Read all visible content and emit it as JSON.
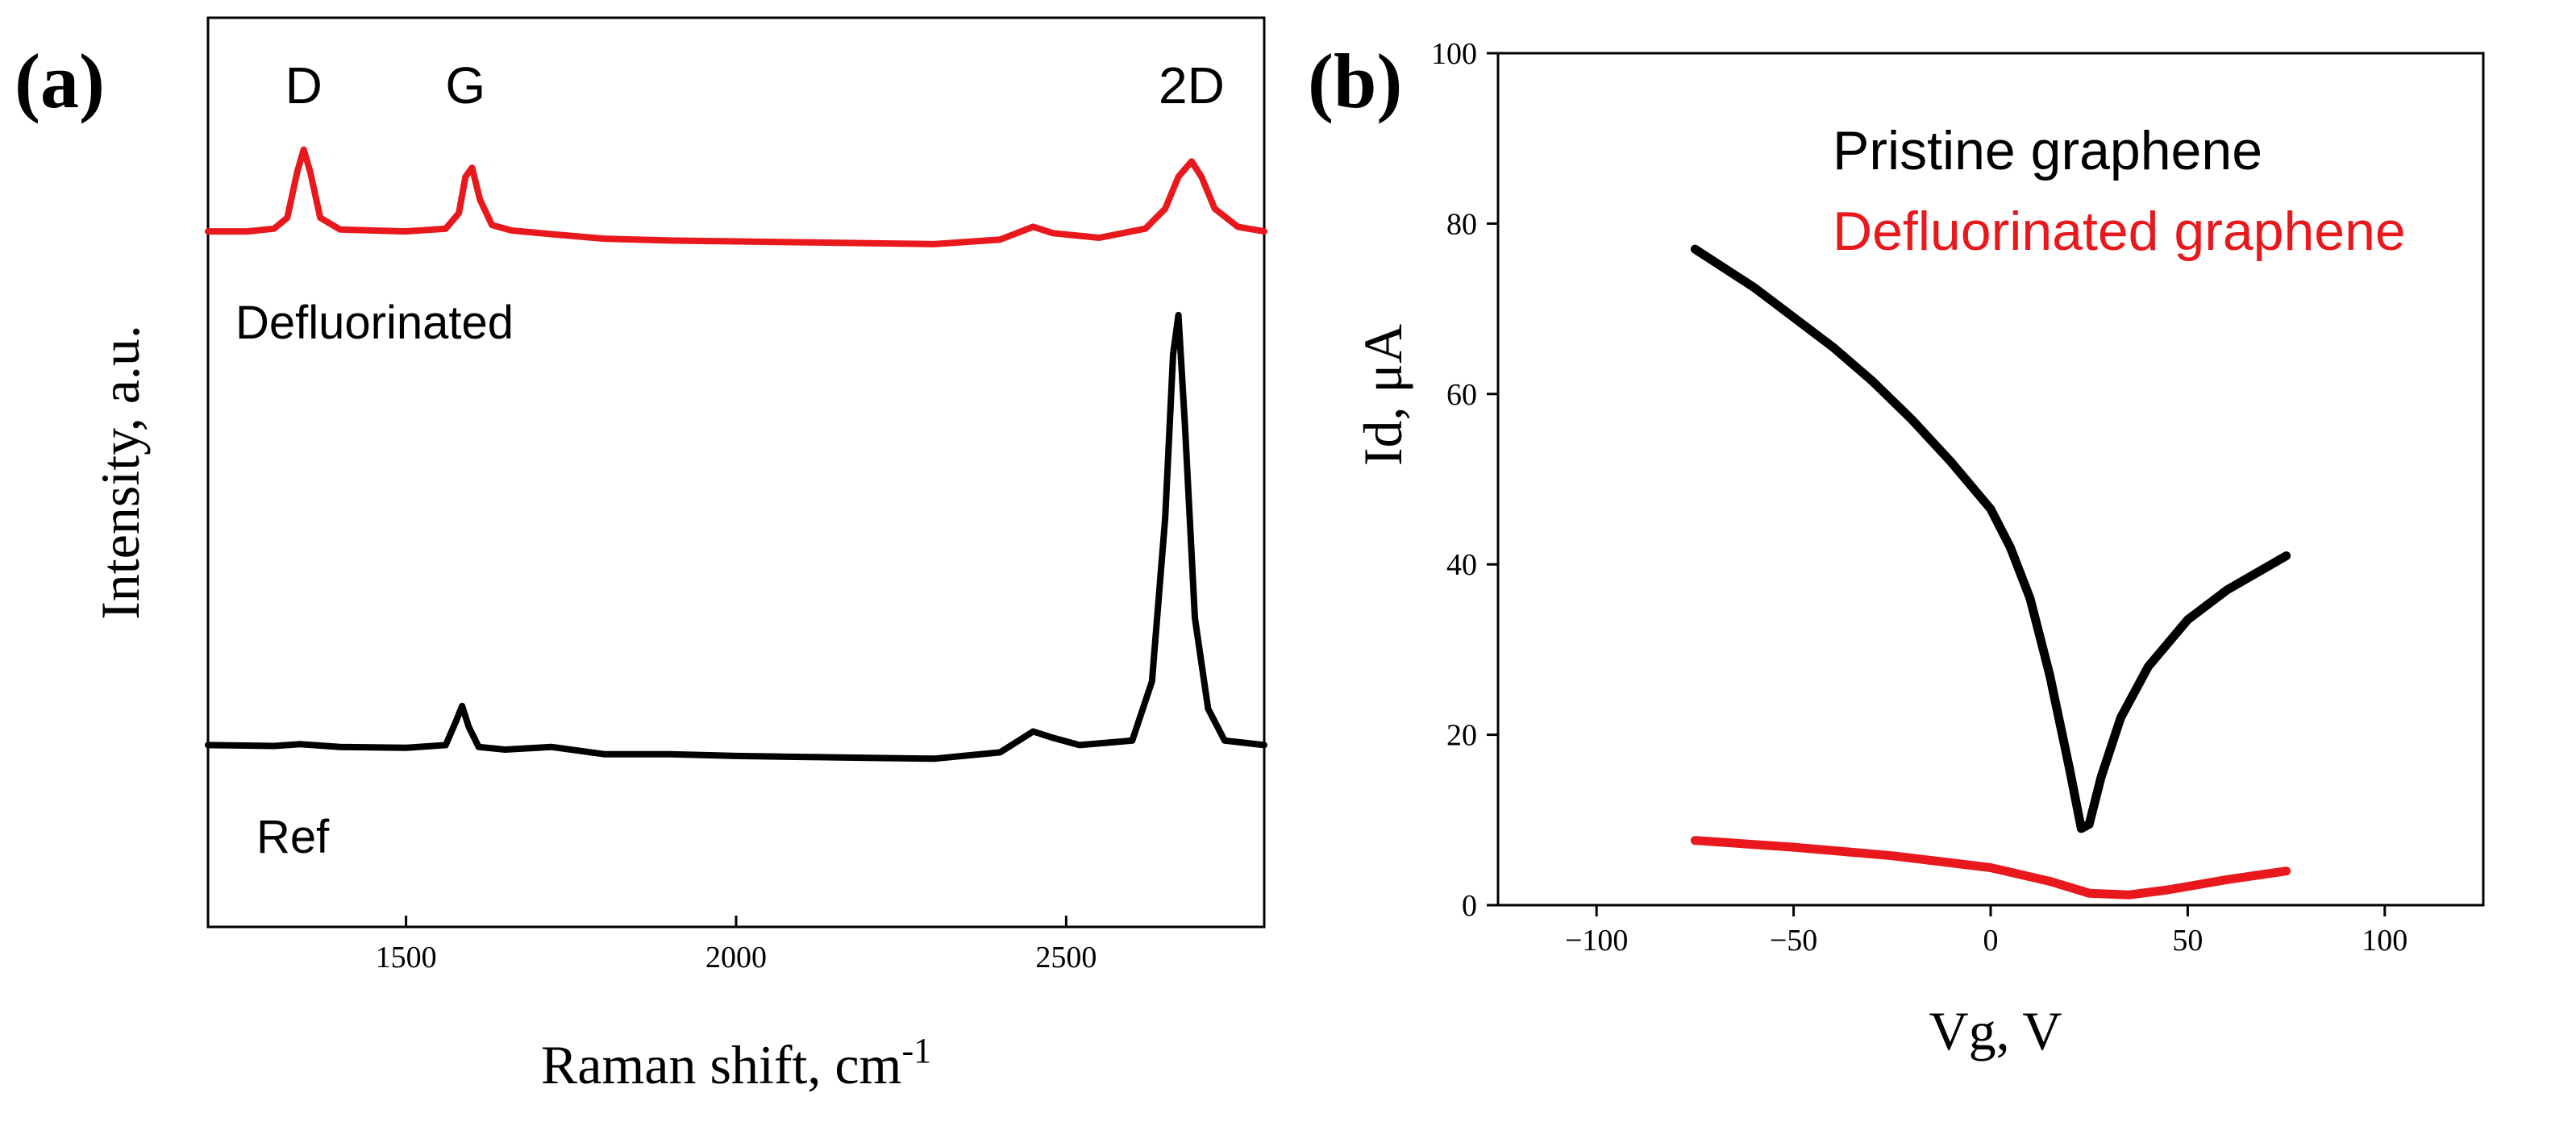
{
  "panel_a_letter": "(a)",
  "panel_b_letter": "(b)",
  "chart_data": [
    {
      "type": "line",
      "panel": "(a)",
      "title": "",
      "xlabel": "Raman shift, cm",
      "xlabel_sup": "-1",
      "ylabel": "Intensity, a.u.",
      "xlim": [
        1200,
        2800
      ],
      "ylim": [
        0,
        1
      ],
      "xticks": [
        1500,
        2000,
        2500
      ],
      "yticks": [],
      "grid": false,
      "peak_labels": [
        {
          "label": "D",
          "x": 1345
        },
        {
          "label": "G",
          "x": 1590
        },
        {
          "label": "2D",
          "x": 2690
        }
      ],
      "series": [
        {
          "name": "Defluorinated",
          "color": "#e8181c",
          "baseline": 0.765,
          "points": [
            [
              1200,
              0.765
            ],
            [
              1260,
              0.765
            ],
            [
              1300,
              0.768
            ],
            [
              1320,
              0.78
            ],
            [
              1335,
              0.83
            ],
            [
              1345,
              0.855
            ],
            [
              1355,
              0.83
            ],
            [
              1370,
              0.78
            ],
            [
              1400,
              0.767
            ],
            [
              1500,
              0.765
            ],
            [
              1560,
              0.768
            ],
            [
              1580,
              0.785
            ],
            [
              1590,
              0.825
            ],
            [
              1600,
              0.835
            ],
            [
              1612,
              0.8
            ],
            [
              1630,
              0.772
            ],
            [
              1660,
              0.766
            ],
            [
              1720,
              0.762
            ],
            [
              1800,
              0.757
            ],
            [
              1900,
              0.755
            ],
            [
              2000,
              0.754
            ],
            [
              2100,
              0.753
            ],
            [
              2200,
              0.752
            ],
            [
              2300,
              0.751
            ],
            [
              2400,
              0.756
            ],
            [
              2450,
              0.77
            ],
            [
              2480,
              0.763
            ],
            [
              2550,
              0.758
            ],
            [
              2620,
              0.768
            ],
            [
              2650,
              0.79
            ],
            [
              2670,
              0.825
            ],
            [
              2690,
              0.842
            ],
            [
              2705,
              0.825
            ],
            [
              2725,
              0.79
            ],
            [
              2760,
              0.77
            ],
            [
              2800,
              0.765
            ]
          ]
        },
        {
          "name": "Ref",
          "color": "#000000",
          "baseline": 0.2,
          "points": [
            [
              1200,
              0.2
            ],
            [
              1300,
              0.199
            ],
            [
              1340,
              0.201
            ],
            [
              1400,
              0.198
            ],
            [
              1500,
              0.197
            ],
            [
              1560,
              0.2
            ],
            [
              1575,
              0.225
            ],
            [
              1585,
              0.243
            ],
            [
              1595,
              0.22
            ],
            [
              1610,
              0.198
            ],
            [
              1650,
              0.195
            ],
            [
              1720,
              0.198
            ],
            [
              1800,
              0.19
            ],
            [
              1900,
              0.19
            ],
            [
              2000,
              0.188
            ],
            [
              2100,
              0.187
            ],
            [
              2200,
              0.186
            ],
            [
              2300,
              0.185
            ],
            [
              2400,
              0.192
            ],
            [
              2450,
              0.215
            ],
            [
              2480,
              0.208
            ],
            [
              2520,
              0.2
            ],
            [
              2600,
              0.205
            ],
            [
              2630,
              0.27
            ],
            [
              2650,
              0.45
            ],
            [
              2662,
              0.63
            ],
            [
              2670,
              0.673
            ],
            [
              2680,
              0.55
            ],
            [
              2695,
              0.34
            ],
            [
              2715,
              0.24
            ],
            [
              2740,
              0.205
            ],
            [
              2800,
              0.2
            ]
          ]
        }
      ],
      "series_labels": [
        {
          "text": "Defluorinated",
          "series": "Defluorinated"
        },
        {
          "text": "Ref",
          "series": "Ref"
        }
      ]
    },
    {
      "type": "line",
      "panel": "(b)",
      "title": "",
      "xlabel": "Vg, V",
      "ylabel": "Id, μA",
      "xlim": [
        -125,
        125
      ],
      "ylim": [
        0,
        100
      ],
      "xticks": [
        -100,
        -50,
        0,
        50,
        100
      ],
      "xtick_labels": [
        "−100",
        "−50",
        "0",
        "50",
        "100"
      ],
      "yticks": [
        0,
        20,
        40,
        60,
        80,
        100
      ],
      "grid": false,
      "legend": "top",
      "series": [
        {
          "name": "Pristine graphene",
          "color": "#000000",
          "points": [
            [
              -75,
              77
            ],
            [
              -60,
              72.5
            ],
            [
              -50,
              69
            ],
            [
              -40,
              65.5
            ],
            [
              -30,
              61.5
            ],
            [
              -20,
              57
            ],
            [
              -10,
              52
            ],
            [
              0,
              46.5
            ],
            [
              5,
              42
            ],
            [
              10,
              36
            ],
            [
              15,
              27
            ],
            [
              20,
              16
            ],
            [
              23,
              9
            ],
            [
              25,
              9.5
            ],
            [
              28,
              15
            ],
            [
              33,
              22
            ],
            [
              40,
              28
            ],
            [
              50,
              33.5
            ],
            [
              60,
              37
            ],
            [
              75,
              41
            ]
          ]
        },
        {
          "name": "Defluorinated graphene",
          "color": "#e8181c",
          "points": [
            [
              -75,
              7.6
            ],
            [
              -50,
              6.8
            ],
            [
              -25,
              5.8
            ],
            [
              0,
              4.4
            ],
            [
              15,
              2.8
            ],
            [
              25,
              1.4
            ],
            [
              35,
              1.2
            ],
            [
              45,
              1.8
            ],
            [
              60,
              3
            ],
            [
              75,
              4
            ]
          ]
        }
      ]
    }
  ]
}
